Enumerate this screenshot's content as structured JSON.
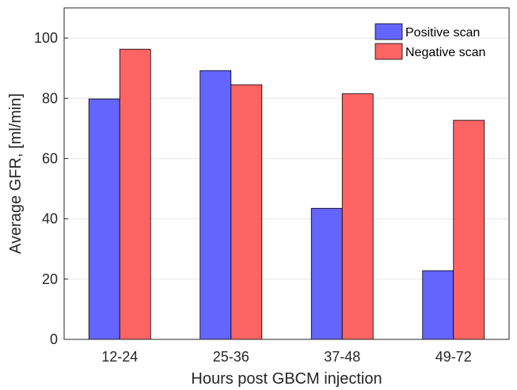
{
  "chart_data": {
    "type": "bar",
    "categories": [
      "12-24",
      "25-36",
      "37-48",
      "49-72"
    ],
    "series": [
      {
        "name": "Positive scan",
        "values": [
          79.8,
          89.2,
          43.5,
          22.8
        ],
        "color": "#6464ff"
      },
      {
        "name": "Negative scan",
        "values": [
          96.3,
          84.5,
          81.5,
          72.7
        ],
        "color": "#ff6464"
      }
    ],
    "xlabel": "Hours post GBCM injection",
    "ylabel": "Average GFR, [ml/min]",
    "ylim": [
      0,
      110
    ],
    "yticks": [
      0,
      20,
      40,
      60,
      80,
      100
    ],
    "ytick_labels": [
      "0",
      "20",
      "40",
      "60",
      "80",
      "100"
    ],
    "grid": true,
    "legend_position": "top-right"
  }
}
